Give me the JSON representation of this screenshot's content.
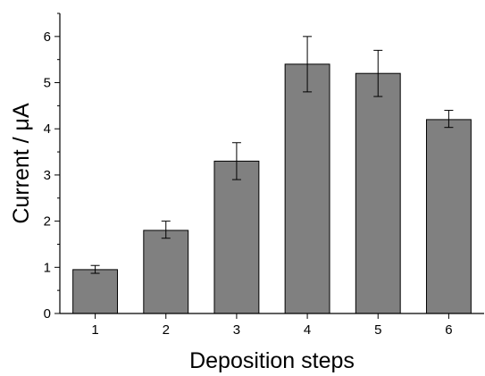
{
  "chart_data": {
    "type": "bar",
    "categories": [
      "1",
      "2",
      "3",
      "4",
      "5",
      "6"
    ],
    "values": [
      0.95,
      1.8,
      3.3,
      5.4,
      5.2,
      4.2
    ],
    "error_low": [
      0.87,
      1.63,
      2.9,
      4.8,
      4.7,
      4.03
    ],
    "error_high": [
      1.04,
      2.0,
      3.7,
      6.0,
      5.7,
      4.4
    ],
    "xlabel": "Deposition steps",
    "ylabel": "Current / μA",
    "ylim": [
      0,
      6.5
    ],
    "yticks": [
      "0",
      "1",
      "2",
      "3",
      "4",
      "5",
      "6"
    ],
    "grid": false,
    "colors": {
      "bar_fill": "#808080",
      "bar_stroke": "#000000",
      "axis": "#000000"
    }
  }
}
